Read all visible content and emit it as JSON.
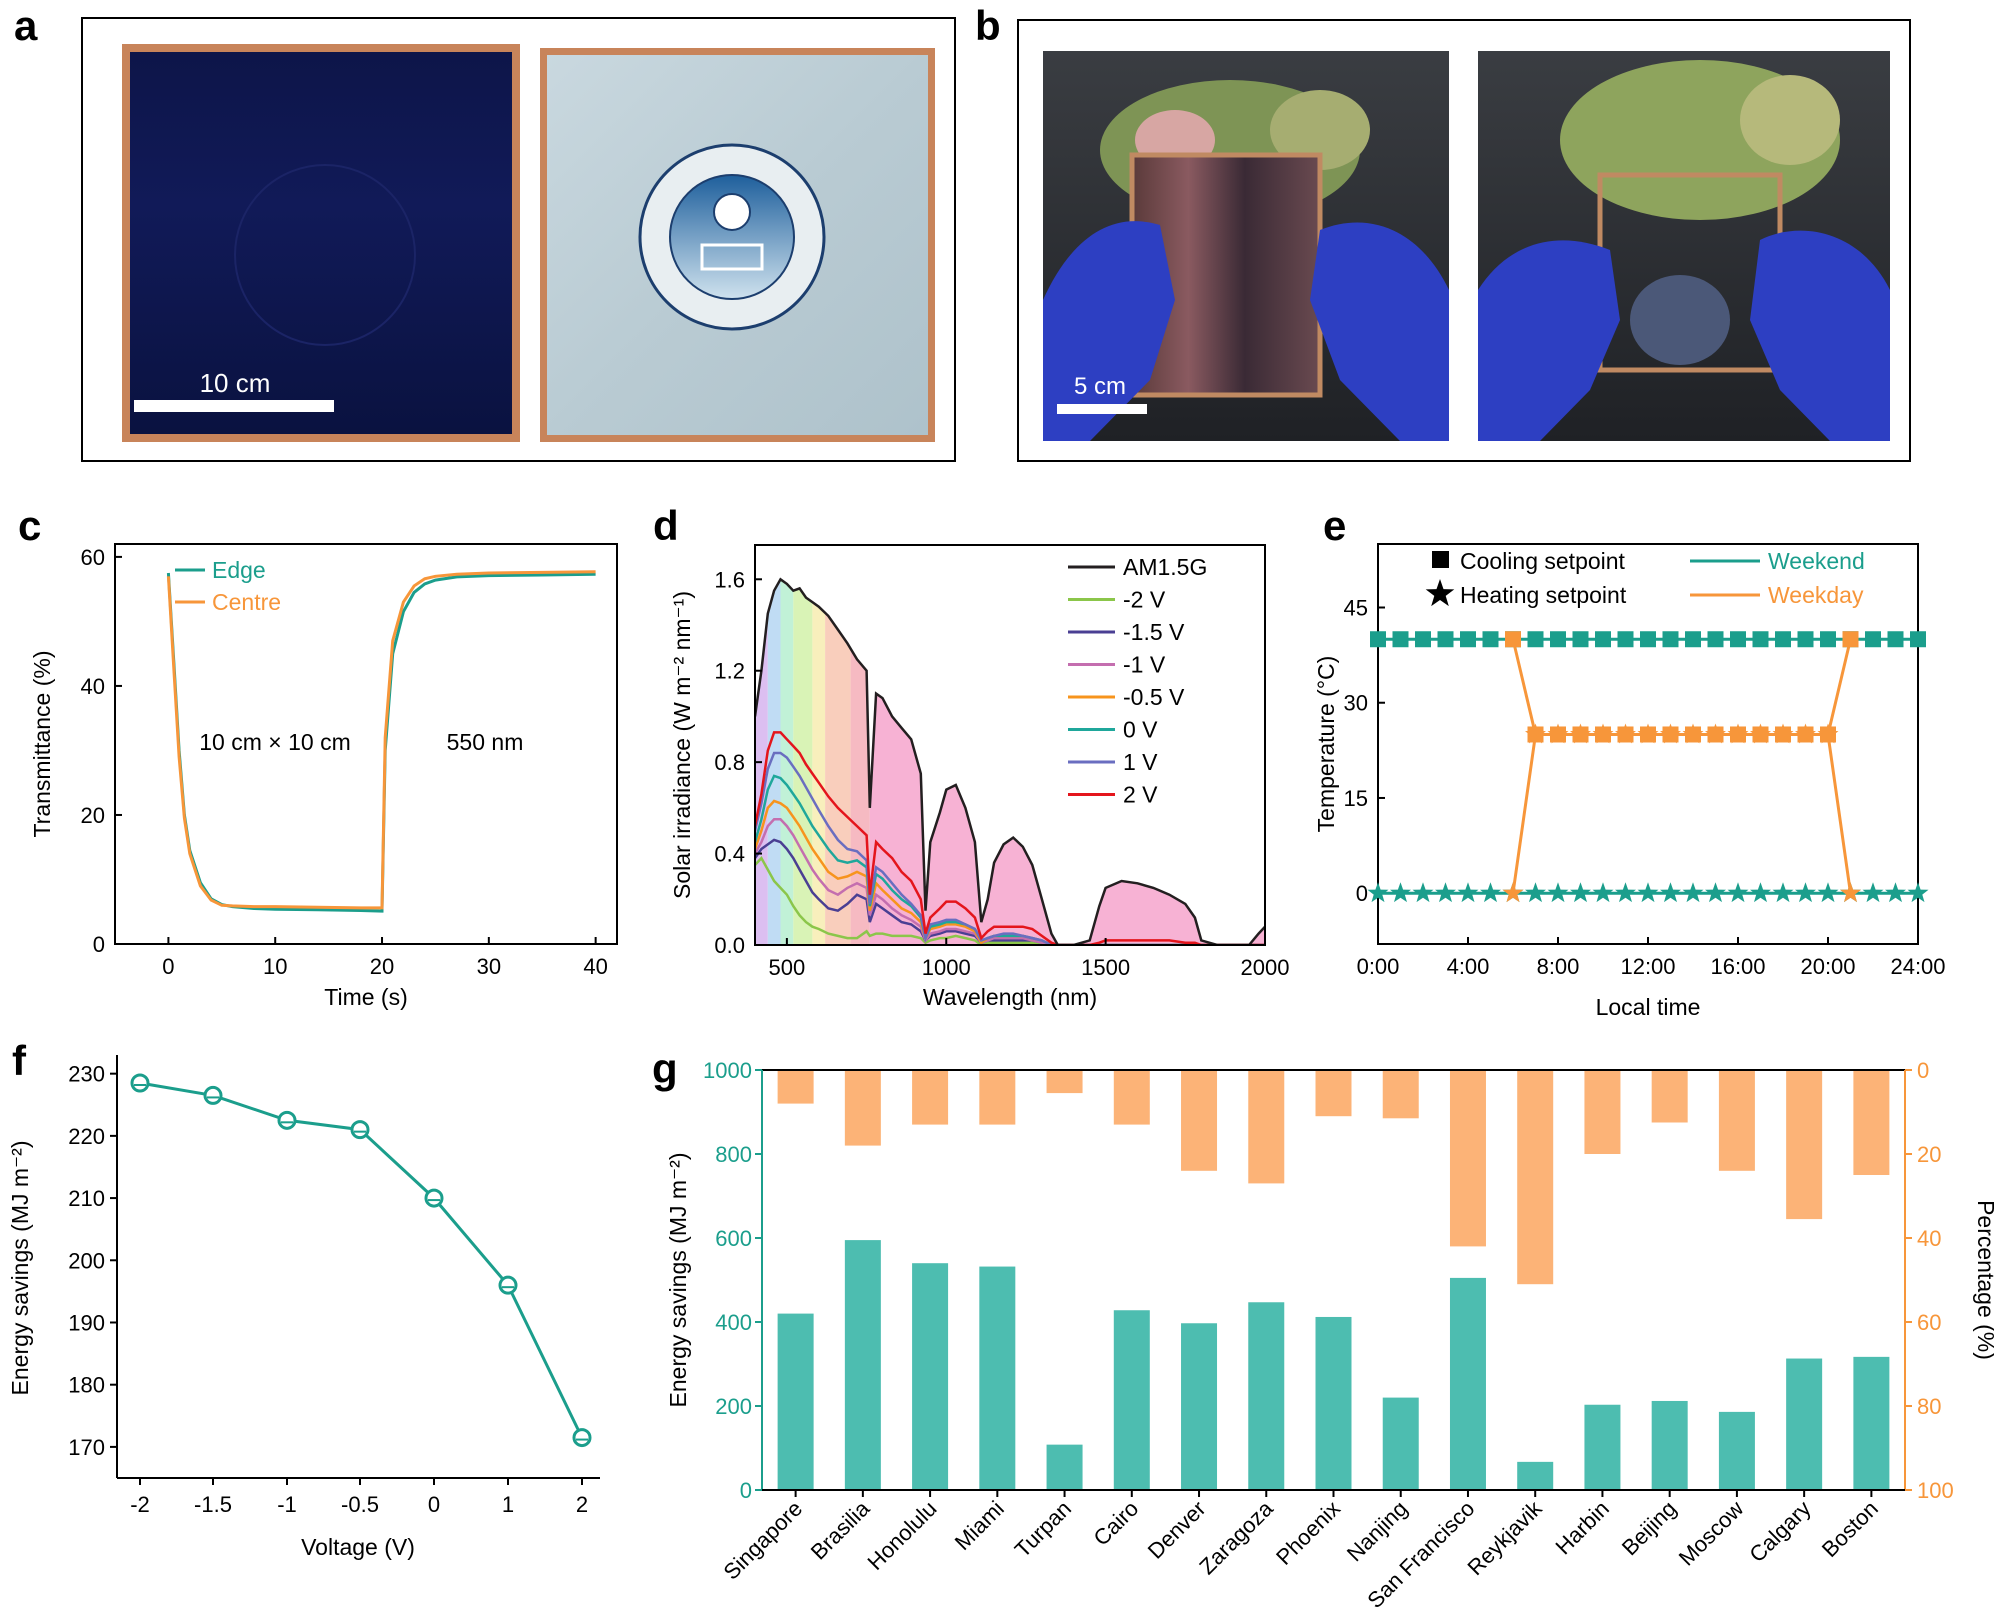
{
  "panels": {
    "a": {
      "label": "a",
      "scale_bar": "10 cm"
    },
    "b": {
      "label": "b",
      "scale_bar": "5 cm"
    },
    "c": {
      "label": "c"
    },
    "d": {
      "label": "d"
    },
    "e": {
      "label": "e"
    },
    "f": {
      "label": "f"
    },
    "g": {
      "label": "g"
    }
  },
  "colors": {
    "teal": "#1b9e8c",
    "orange": "#f7963a",
    "teal_bar": "#4dbdb0",
    "orange_bar": "#fcb377",
    "red": "#e4151c"
  },
  "chart_data": [
    {
      "id": "c",
      "type": "line",
      "xlabel": "Time (s)",
      "ylabel": "Transmittance (%)",
      "xlim": [
        -5,
        42
      ],
      "ylim": [
        0,
        62
      ],
      "xticks": [
        0,
        10,
        20,
        30,
        40
      ],
      "yticks": [
        0,
        20,
        40,
        60
      ],
      "annotations": [
        "10 cm × 10 cm",
        "550 nm"
      ],
      "legend_position": "top-left",
      "series": [
        {
          "name": "Edge",
          "color": "#1b9e8c",
          "x": [
            0,
            0.5,
            1,
            1.5,
            2,
            3,
            4,
            5,
            6,
            8,
            10,
            14,
            18,
            20,
            20.3,
            21,
            22,
            23,
            24,
            25,
            27,
            30,
            35,
            40
          ],
          "y": [
            57.5,
            44,
            30,
            20,
            14.5,
            9.5,
            7,
            6.1,
            5.8,
            5.5,
            5.4,
            5.3,
            5.2,
            5.1,
            30,
            45,
            51.5,
            54.5,
            55.8,
            56.4,
            56.9,
            57.1,
            57.2,
            57.3
          ]
        },
        {
          "name": "Centre",
          "color": "#f7963a",
          "x": [
            0,
            0.5,
            1,
            1.5,
            2,
            3,
            4,
            5,
            6,
            8,
            10,
            14,
            18,
            20,
            20.3,
            21,
            22,
            23,
            24,
            25,
            27,
            30,
            35,
            40
          ],
          "y": [
            57,
            43,
            29,
            19.5,
            14,
            9,
            6.8,
            6,
            5.9,
            5.8,
            5.8,
            5.7,
            5.6,
            5.6,
            32,
            47,
            53,
            55.5,
            56.6,
            57,
            57.3,
            57.5,
            57.6,
            57.7
          ]
        }
      ]
    },
    {
      "id": "d",
      "type": "line",
      "xlabel": "Wavelength (nm)",
      "ylabel": "Solar irradiance (W m⁻² nm⁻¹)",
      "xlim": [
        400,
        2000
      ],
      "ylim": [
        0,
        1.75
      ],
      "xticks": [
        500,
        1000,
        1500,
        2000
      ],
      "yticks": [
        0.0,
        0.4,
        0.8,
        1.2,
        1.6
      ],
      "ytick_labels": [
        "0.0",
        "0.4",
        "0.8",
        "1.2",
        "1.6"
      ],
      "legend_position": "top-right",
      "x": [
        400,
        420,
        440,
        460,
        480,
        500,
        520,
        540,
        560,
        580,
        600,
        630,
        660,
        690,
        720,
        750,
        760,
        780,
        800,
        830,
        860,
        890,
        920,
        935,
        950,
        980,
        1000,
        1030,
        1060,
        1090,
        1110,
        1130,
        1150,
        1180,
        1210,
        1240,
        1270,
        1300,
        1330,
        1350,
        1400,
        1450,
        1480,
        1500,
        1550,
        1600,
        1650,
        1700,
        1750,
        1780,
        1800,
        1850,
        1900,
        1950,
        1980,
        2000
      ],
      "series": [
        {
          "name": "AM1.5G",
          "color": "#231f20",
          "y": [
            1.0,
            1.2,
            1.45,
            1.55,
            1.6,
            1.58,
            1.55,
            1.56,
            1.52,
            1.5,
            1.48,
            1.44,
            1.38,
            1.32,
            1.25,
            1.2,
            0.6,
            1.1,
            1.08,
            1.0,
            0.95,
            0.9,
            0.75,
            0.15,
            0.45,
            0.58,
            0.68,
            0.7,
            0.6,
            0.45,
            0.1,
            0.2,
            0.36,
            0.44,
            0.47,
            0.43,
            0.35,
            0.2,
            0.05,
            0.0,
            0.0,
            0.02,
            0.17,
            0.25,
            0.28,
            0.27,
            0.25,
            0.22,
            0.18,
            0.12,
            0.02,
            0.0,
            0.0,
            0.0,
            0.05,
            0.08
          ]
        },
        {
          "name": "-2 V",
          "color": "#8bc64a",
          "y": [
            0.35,
            0.38,
            0.33,
            0.28,
            0.25,
            0.22,
            0.17,
            0.13,
            0.1,
            0.08,
            0.07,
            0.05,
            0.04,
            0.03,
            0.03,
            0.06,
            0.04,
            0.05,
            0.05,
            0.04,
            0.04,
            0.04,
            0.03,
            0.01,
            0.02,
            0.03,
            0.03,
            0.04,
            0.03,
            0.02,
            0.0,
            0.01,
            0.01,
            0.01,
            0.01,
            0.01,
            0.01,
            0.0,
            0.0,
            0.0,
            0.0,
            0.0,
            0.0,
            0.0,
            0.0,
            0.0,
            0.0,
            0.0,
            0.0,
            0.0,
            0.0,
            0.0,
            0.0,
            0.0,
            0.0,
            0.0
          ]
        },
        {
          "name": "-1.5 V",
          "color": "#4a3f93",
          "y": [
            0.38,
            0.42,
            0.44,
            0.46,
            0.45,
            0.42,
            0.38,
            0.33,
            0.28,
            0.23,
            0.2,
            0.16,
            0.15,
            0.18,
            0.22,
            0.2,
            0.1,
            0.18,
            0.16,
            0.13,
            0.1,
            0.09,
            0.06,
            0.02,
            0.04,
            0.05,
            0.06,
            0.06,
            0.05,
            0.04,
            0.01,
            0.02,
            0.02,
            0.02,
            0.02,
            0.02,
            0.02,
            0.01,
            0.0,
            0.0,
            0.0,
            0.0,
            0.0,
            0.0,
            0.0,
            0.0,
            0.0,
            0.0,
            0.0,
            0.0,
            0.0,
            0.0,
            0.0,
            0.0,
            0.0,
            0.0
          ]
        },
        {
          "name": "-1 V",
          "color": "#c46eaf",
          "y": [
            0.4,
            0.45,
            0.52,
            0.55,
            0.55,
            0.52,
            0.48,
            0.43,
            0.38,
            0.33,
            0.29,
            0.24,
            0.22,
            0.25,
            0.27,
            0.25,
            0.13,
            0.22,
            0.2,
            0.16,
            0.13,
            0.11,
            0.08,
            0.02,
            0.05,
            0.06,
            0.07,
            0.07,
            0.06,
            0.05,
            0.01,
            0.02,
            0.03,
            0.03,
            0.03,
            0.03,
            0.02,
            0.01,
            0.0,
            0.0,
            0.0,
            0.0,
            0.0,
            0.0,
            0.0,
            0.0,
            0.0,
            0.0,
            0.0,
            0.0,
            0.0,
            0.0,
            0.0,
            0.0,
            0.0,
            0.0
          ]
        },
        {
          "name": "-0.5 V",
          "color": "#f7941d",
          "y": [
            0.42,
            0.5,
            0.6,
            0.63,
            0.62,
            0.6,
            0.56,
            0.52,
            0.47,
            0.42,
            0.38,
            0.32,
            0.29,
            0.3,
            0.32,
            0.3,
            0.15,
            0.27,
            0.24,
            0.2,
            0.16,
            0.14,
            0.1,
            0.03,
            0.07,
            0.08,
            0.09,
            0.09,
            0.08,
            0.06,
            0.01,
            0.03,
            0.04,
            0.04,
            0.04,
            0.04,
            0.03,
            0.02,
            0.0,
            0.0,
            0.0,
            0.0,
            0.0,
            0.0,
            0.0,
            0.0,
            0.0,
            0.0,
            0.0,
            0.0,
            0.0,
            0.0,
            0.0,
            0.0,
            0.0,
            0.0
          ]
        },
        {
          "name": "0 V",
          "color": "#1fa79b",
          "y": [
            0.45,
            0.55,
            0.68,
            0.74,
            0.73,
            0.7,
            0.66,
            0.62,
            0.57,
            0.52,
            0.48,
            0.42,
            0.37,
            0.36,
            0.37,
            0.34,
            0.17,
            0.31,
            0.29,
            0.24,
            0.2,
            0.17,
            0.12,
            0.03,
            0.08,
            0.09,
            0.1,
            0.1,
            0.09,
            0.07,
            0.02,
            0.03,
            0.04,
            0.04,
            0.04,
            0.04,
            0.03,
            0.02,
            0.0,
            0.0,
            0.0,
            0.0,
            0.0,
            0.0,
            0.0,
            0.0,
            0.0,
            0.0,
            0.0,
            0.0,
            0.0,
            0.0,
            0.0,
            0.0,
            0.0,
            0.0
          ]
        },
        {
          "name": "1 V",
          "color": "#6a6ec0",
          "y": [
            0.5,
            0.62,
            0.77,
            0.84,
            0.84,
            0.82,
            0.78,
            0.74,
            0.69,
            0.64,
            0.59,
            0.52,
            0.46,
            0.42,
            0.41,
            0.37,
            0.18,
            0.34,
            0.32,
            0.27,
            0.22,
            0.18,
            0.13,
            0.03,
            0.09,
            0.1,
            0.11,
            0.11,
            0.09,
            0.07,
            0.02,
            0.03,
            0.04,
            0.05,
            0.05,
            0.04,
            0.03,
            0.02,
            0.0,
            0.0,
            0.0,
            0.0,
            0.0,
            0.0,
            0.0,
            0.0,
            0.0,
            0.0,
            0.0,
            0.0,
            0.0,
            0.0,
            0.0,
            0.0,
            0.0,
            0.0
          ]
        },
        {
          "name": "2 V",
          "color": "#e4151c",
          "y": [
            0.52,
            0.66,
            0.85,
            0.93,
            0.93,
            0.9,
            0.87,
            0.84,
            0.79,
            0.75,
            0.71,
            0.65,
            0.6,
            0.56,
            0.52,
            0.48,
            0.22,
            0.45,
            0.42,
            0.38,
            0.32,
            0.28,
            0.2,
            0.05,
            0.12,
            0.16,
            0.19,
            0.19,
            0.16,
            0.12,
            0.03,
            0.06,
            0.08,
            0.08,
            0.08,
            0.08,
            0.07,
            0.04,
            0.01,
            0.0,
            0.0,
            0.0,
            0.01,
            0.02,
            0.02,
            0.02,
            0.02,
            0.02,
            0.01,
            0.01,
            0.0,
            0.0,
            0.0,
            0.0,
            0.0,
            0.0
          ]
        }
      ]
    },
    {
      "id": "e",
      "type": "line",
      "xlabel": "Local time",
      "ylabel": "Temperature (°C)",
      "xlim": [
        0,
        24
      ],
      "ylim": [
        -8,
        55
      ],
      "xticks": [
        0,
        4,
        8,
        12,
        16,
        20,
        24
      ],
      "xtick_labels": [
        "0:00",
        "4:00",
        "8:00",
        "12:00",
        "16:00",
        "20:00",
        "24:00"
      ],
      "yticks": [
        0,
        15,
        30,
        45
      ],
      "legend_position": "top",
      "marker_legend": [
        {
          "name": "Cooling setpoint",
          "marker": "square"
        },
        {
          "name": "Heating setpoint",
          "marker": "star"
        }
      ],
      "series": [
        {
          "name": "Weekend",
          "color": "#1b9e8c",
          "cooling": [
            40,
            40,
            40,
            40,
            40,
            40,
            40,
            40,
            40,
            40,
            40,
            40,
            40,
            40,
            40,
            40,
            40,
            40,
            40,
            40,
            40,
            40,
            40,
            40,
            40
          ],
          "heating": [
            0,
            0,
            0,
            0,
            0,
            0,
            0,
            0,
            0,
            0,
            0,
            0,
            0,
            0,
            0,
            0,
            0,
            0,
            0,
            0,
            0,
            0,
            0,
            0,
            0
          ]
        },
        {
          "name": "Weekday",
          "color": "#f7963a",
          "hours": [
            6,
            7,
            8,
            9,
            10,
            11,
            12,
            13,
            14,
            15,
            16,
            17,
            18,
            19,
            20,
            21
          ],
          "cooling": [
            40,
            25,
            25,
            25,
            25,
            25,
            25,
            25,
            25,
            25,
            25,
            25,
            25,
            25,
            25,
            40
          ],
          "heating": [
            0,
            25,
            25,
            25,
            25,
            25,
            25,
            25,
            25,
            25,
            25,
            25,
            25,
            25,
            25,
            0
          ]
        }
      ]
    },
    {
      "id": "f",
      "type": "line",
      "xlabel": "Voltage (V)",
      "ylabel": "Energy savings (MJ m⁻²)",
      "categories": [
        "-2",
        "-1.5",
        "-1",
        "-0.5",
        "0",
        "1",
        "2"
      ],
      "values": [
        228.5,
        226.5,
        222.5,
        221,
        210,
        196,
        171.5
      ],
      "ylim": [
        165,
        233
      ],
      "yticks": [
        170,
        180,
        190,
        200,
        210,
        220,
        230
      ],
      "color": "#1b9e8c"
    },
    {
      "id": "g",
      "type": "bar",
      "ylabel": "Energy savings (MJ m⁻²)",
      "y2label": "Percentage (%)",
      "ylim": [
        0,
        1000
      ],
      "yticks": [
        0,
        200,
        400,
        600,
        800,
        1000
      ],
      "y2lim": [
        0,
        100
      ],
      "y2ticks": [
        0,
        20,
        40,
        60,
        80,
        100
      ],
      "y2_inverted": true,
      "categories": [
        "Singapore",
        "Brasilia",
        "Honolulu",
        "Miami",
        "Turpan",
        "Cairo",
        "Denver",
        "Zaragoza",
        "Phoenix",
        "Nanjing",
        "San Francisco",
        "Reykjavik",
        "Harbin",
        "Beijing",
        "Moscow",
        "Calgary",
        "Boston"
      ],
      "series": [
        {
          "axis": "left",
          "color": "#4dbdb0",
          "values": [
            420,
            595,
            540,
            532,
            108,
            428,
            397,
            447,
            412,
            220,
            505,
            67,
            203,
            212,
            186,
            313,
            317
          ]
        },
        {
          "axis": "right",
          "color": "#fcb377",
          "values": [
            8,
            18,
            13,
            13,
            5.5,
            13,
            24,
            27,
            11,
            11.5,
            42,
            51,
            20,
            12.5,
            24,
            35.5,
            25
          ]
        }
      ]
    }
  ]
}
